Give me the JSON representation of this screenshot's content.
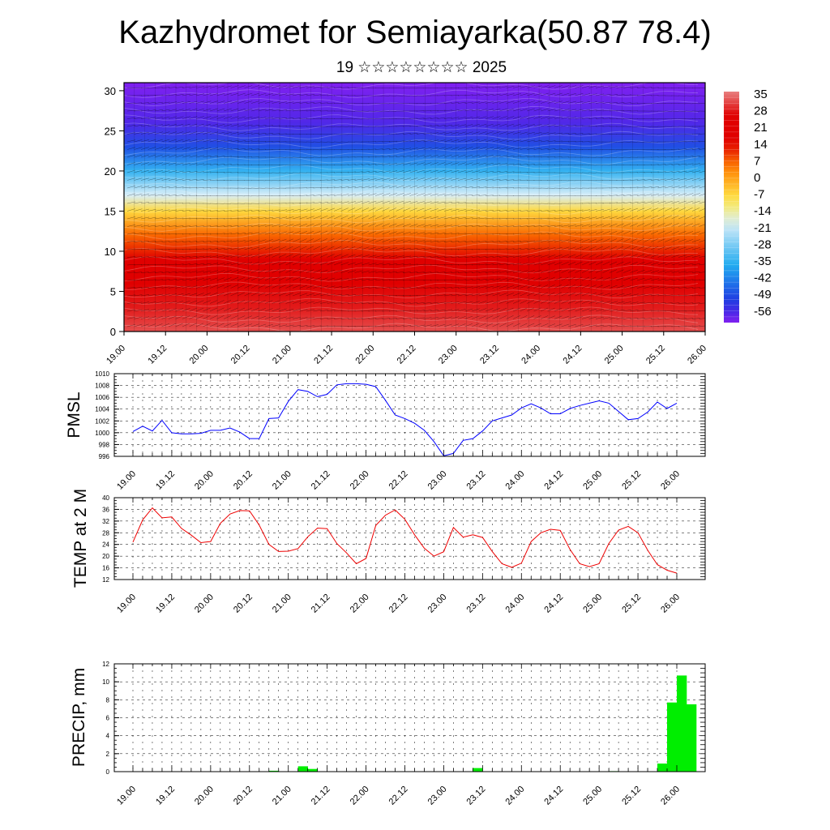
{
  "header": {
    "title": "Kazhydromet for Semiayarka(50.87 78.4)",
    "subtitle": "19 ☆☆☆☆☆☆☆☆ 2025"
  },
  "time_ticks": [
    "19.00",
    "19.12",
    "20.00",
    "20.12",
    "21.00",
    "21.12",
    "22.00",
    "22.12",
    "23.00",
    "23.12",
    "24.00",
    "24.12",
    "25.00",
    "25.12",
    "26.00"
  ],
  "chart_data": [
    {
      "type": "heatmap",
      "name": "vertical-temperature-wind-section",
      "x_ticks": [
        "19.00",
        "19.12",
        "20.00",
        "20.12",
        "21.00",
        "21.12",
        "22.00",
        "22.12",
        "23.00",
        "23.12",
        "24.00",
        "24.12",
        "25.00",
        "25.12",
        "26.00"
      ],
      "y_ticks": [
        0,
        5,
        10,
        15,
        20,
        25,
        30
      ],
      "ylim": [
        0,
        31
      ],
      "colorbar_labels": [
        35,
        28,
        21,
        14,
        7,
        0,
        -7,
        -14,
        -21,
        -28,
        -35,
        -42,
        -49,
        -56
      ],
      "colorbar_range": [
        -60,
        38
      ],
      "temperature_profile_by_level": [
        {
          "y": 0,
          "t": 34
        },
        {
          "y": 3,
          "t": 30
        },
        {
          "y": 6,
          "t": 26
        },
        {
          "y": 9,
          "t": 18
        },
        {
          "y": 12,
          "t": 8
        },
        {
          "y": 15,
          "t": -6
        },
        {
          "y": 17,
          "t": -18
        },
        {
          "y": 20,
          "t": -34
        },
        {
          "y": 23,
          "t": -48
        },
        {
          "y": 26,
          "t": -56
        },
        {
          "y": 31,
          "t": -60
        }
      ],
      "colors": {
        "hot": "#e88080",
        "red": "#e00000",
        "orange": "#ff8000",
        "yellow": "#ffe84a",
        "pale": "#d8eef8",
        "cyan": "#1eaaf0",
        "blue": "#2030e0",
        "violet": "#8020f0"
      }
    },
    {
      "type": "line",
      "ylabel": "PMSL",
      "ylim": [
        996,
        1010
      ],
      "y_ticks": [
        996,
        998,
        1000,
        1002,
        1004,
        1006,
        1008,
        1010
      ],
      "x_ticks": [
        "19.00",
        "19.12",
        "20.00",
        "20.12",
        "21.00",
        "21.12",
        "22.00",
        "22.12",
        "23.00",
        "23.12",
        "24.00",
        "24.12",
        "25.00",
        "25.12",
        "26.00"
      ],
      "x_hours": [
        0,
        3,
        6,
        9,
        12,
        15,
        18,
        21,
        24,
        27,
        30,
        33,
        36,
        39,
        42,
        45,
        48,
        51,
        54,
        57,
        60,
        63,
        66,
        69,
        72,
        75,
        78,
        81,
        84,
        87,
        90,
        93,
        96,
        99,
        102,
        105,
        108,
        111,
        114,
        117,
        120,
        123,
        126,
        129,
        132,
        135,
        138,
        141,
        144,
        147,
        150,
        153,
        156,
        159,
        162,
        165,
        168
      ],
      "values": [
        1000.2,
        1001.1,
        1000.3,
        1002.1,
        1000.0,
        999.8,
        999.8,
        999.9,
        1000.4,
        1000.4,
        1000.8,
        1000.1,
        999.0,
        999.0,
        1002.4,
        1002.5,
        1005.3,
        1007.3,
        1007.0,
        1006.1,
        1006.5,
        1008.1,
        1008.3,
        1008.3,
        1008.2,
        1007.8,
        1005.5,
        1003.0,
        1002.4,
        1001.6,
        1000.4,
        998.5,
        996.1,
        996.5,
        998.7,
        999.0,
        1000.3,
        1002.0,
        1002.5,
        1003.0,
        1004.2,
        1004.9,
        1004.2,
        1003.2,
        1003.2,
        1004.1,
        1004.6,
        1005.0,
        1005.4,
        1005.0,
        1003.6,
        1002.2,
        1002.4,
        1003.5,
        1005.2,
        1004.1,
        1005.0
      ],
      "color": "#0000ff"
    },
    {
      "type": "line",
      "ylabel": "TEMP at 2 M",
      "ylim": [
        12,
        40
      ],
      "y_ticks": [
        12,
        16,
        20,
        24,
        28,
        32,
        36,
        40
      ],
      "x_ticks": [
        "19.00",
        "19.12",
        "20.00",
        "20.12",
        "21.00",
        "21.12",
        "22.00",
        "22.12",
        "23.00",
        "23.12",
        "24.00",
        "24.12",
        "25.00",
        "25.12",
        "26.00"
      ],
      "x_hours": [
        0,
        3,
        6,
        9,
        12,
        15,
        18,
        21,
        24,
        27,
        30,
        33,
        36,
        39,
        42,
        45,
        48,
        51,
        54,
        57,
        60,
        63,
        66,
        69,
        72,
        75,
        78,
        81,
        84,
        87,
        90,
        93,
        96,
        99,
        102,
        105,
        108,
        111,
        114,
        117,
        120,
        123,
        126,
        129,
        132,
        135,
        138,
        141,
        144,
        147,
        150,
        153,
        156,
        159,
        162,
        165,
        168
      ],
      "values": [
        24.8,
        32.4,
        36.5,
        33.1,
        33.4,
        29.5,
        27.2,
        24.6,
        25.0,
        31.2,
        34.4,
        35.6,
        35.5,
        30.6,
        24.0,
        21.6,
        21.7,
        22.6,
        26.6,
        29.6,
        29.4,
        24.3,
        21.1,
        17.4,
        19.2,
        30.5,
        34.0,
        35.8,
        32.6,
        27.3,
        22.7,
        20.0,
        21.5,
        29.8,
        26.5,
        27.3,
        26.4,
        21.6,
        17.4,
        16.2,
        17.6,
        25.0,
        28.0,
        29.2,
        28.8,
        22.3,
        17.4,
        16.4,
        17.4,
        24.3,
        28.9,
        30.2,
        28.0,
        22.0,
        17.1,
        15.2,
        14.2
      ],
      "color": "#ee0000"
    },
    {
      "type": "bar",
      "ylabel": "PRECIP, mm",
      "ylim": [
        0,
        12
      ],
      "y_ticks": [
        0,
        2,
        4,
        6,
        8,
        10,
        12
      ],
      "x_ticks": [
        "19.00",
        "19.12",
        "20.00",
        "20.12",
        "21.00",
        "21.12",
        "22.00",
        "22.12",
        "23.00",
        "23.12",
        "24.00",
        "24.12",
        "25.00",
        "25.12",
        "26.00"
      ],
      "bin_hours": 3,
      "values": [
        0,
        0,
        0,
        0,
        0,
        0,
        0,
        0,
        0,
        0,
        0,
        0,
        0,
        0,
        0.1,
        0,
        0,
        0.6,
        0.3,
        0,
        0,
        0,
        0,
        0,
        0,
        0,
        0,
        0,
        0,
        0,
        0,
        0,
        0,
        0,
        0,
        0.4,
        0,
        0,
        0,
        0,
        0,
        0,
        0,
        0,
        0,
        0,
        0,
        0,
        0,
        0.05,
        0,
        0,
        0,
        0,
        0.9,
        7.7,
        10.7,
        7.5,
        0
      ],
      "color": "#00ee00"
    }
  ]
}
